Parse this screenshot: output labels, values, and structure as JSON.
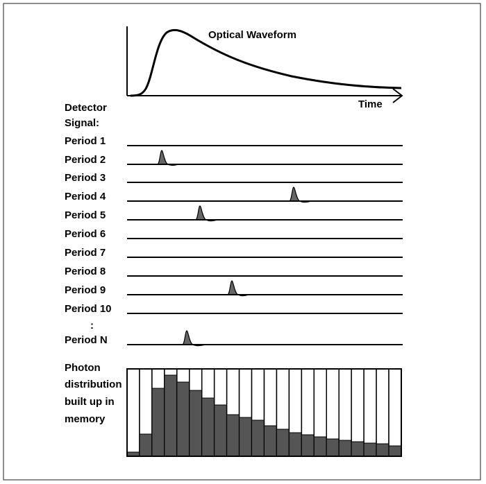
{
  "waveform": {
    "title": "Optical Waveform",
    "x_axis_label": "Time"
  },
  "detector": {
    "label": [
      "Detector",
      "Signal:"
    ],
    "periods": [
      "Period 1",
      "Period 2",
      "Period 3",
      "Period 4",
      "Period 5",
      "Period 6",
      "Period 7",
      "Period 8",
      "Period 9",
      "Period 10",
      "Period N"
    ],
    "ellipsis": ":"
  },
  "memory": {
    "label": [
      "Photon",
      "distribution",
      "built up in",
      "memory"
    ]
  }
}
